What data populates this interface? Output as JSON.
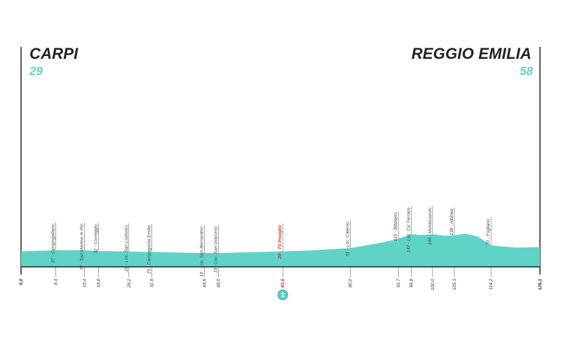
{
  "start": {
    "name": "CARPI",
    "altitude": "29"
  },
  "finish": {
    "name": "REGGIO EMILIA",
    "altitude": "58"
  },
  "colors": {
    "profile": "#5fd3c6",
    "axis": "#222222",
    "sprint": "#d6282f"
  },
  "chart_data": {
    "type": "area",
    "xlim": [
      0,
      126.1
    ],
    "y_unit": "m",
    "edge_labels": [
      "0,0",
      "126,1"
    ],
    "profile": [
      [
        0,
        29
      ],
      [
        8.4,
        37
      ],
      [
        15.4,
        37
      ],
      [
        18.8,
        32
      ],
      [
        26.2,
        28
      ],
      [
        31.8,
        25
      ],
      [
        44.6,
        18
      ],
      [
        48.0,
        18
      ],
      [
        63.6,
        29
      ],
      [
        70,
        35
      ],
      [
        80.0,
        51
      ],
      [
        88,
        90
      ],
      [
        91.7,
        115
      ],
      [
        94.8,
        147
      ],
      [
        97,
        140
      ],
      [
        100.0,
        146
      ],
      [
        103,
        135
      ],
      [
        105.3,
        138
      ],
      [
        108,
        150
      ],
      [
        111,
        130
      ],
      [
        114.2,
        70
      ],
      [
        120,
        55
      ],
      [
        126.1,
        58
      ]
    ],
    "markers": [
      {
        "km": 8.4,
        "km_label": "8,4",
        "label": "37 - Campogalliano"
      },
      {
        "km": 15.4,
        "km_label": "15,4",
        "label": "37 - San Martino in Rio"
      },
      {
        "km": 18.8,
        "km_label": "18,8",
        "label": "32 - Correggio"
      },
      {
        "km": 26.2,
        "km_label": "26,2",
        "label": "28 - Loc. San Lodovico"
      },
      {
        "km": 31.8,
        "km_label": "31,8",
        "label": "25 - Campagnola Emilia"
      },
      {
        "km": 44.6,
        "km_label": "44,6",
        "label": "18 - Loc. San Bernardino"
      },
      {
        "km": 48.0,
        "km_label": "48,0",
        "label": "18 - Loc. San Giacomo"
      },
      {
        "km": 63.6,
        "km_label": "63,6",
        "label": "29 - TV Poviglio",
        "sprint": true,
        "sprint_number": "1"
      },
      {
        "km": 80.0,
        "km_label": "80,0",
        "label": "51 - Loc. Calerno"
      },
      {
        "km": 91.7,
        "km_label": "91,7",
        "label": "115 - Bibbiano"
      },
      {
        "km": 94.8,
        "km_label": "94,8",
        "label": "147 - Loc. Ca' Ferrace"
      },
      {
        "km": 100.0,
        "km_label": "100,0",
        "label": "146 - Montecavolo"
      },
      {
        "km": 105.3,
        "km_label": "105,3",
        "label": "138 - Albinea"
      },
      {
        "km": 114.2,
        "km_label": "114,2",
        "label": "70 - Fogliano"
      }
    ]
  }
}
